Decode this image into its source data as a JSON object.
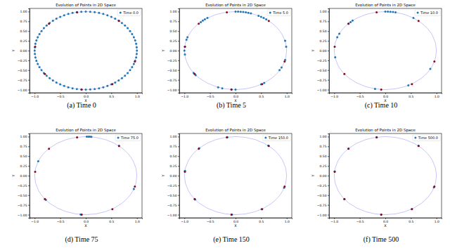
{
  "chart_data": [
    {
      "type": "scatter",
      "title": "Evolution of Points in 2D Space",
      "caption": "(a) Time 0",
      "x_label": "X",
      "y_label": "Y",
      "xlim": [
        -1.1,
        1.1
      ],
      "ylim": [
        -1.08,
        1.08
      ],
      "xticks": [
        {
          "value": -1,
          "label": "−1.0"
        },
        {
          "value": -0.5,
          "label": "−0.5"
        },
        {
          "value": 0,
          "label": "0.0"
        },
        {
          "value": 0.5,
          "label": "0.5"
        },
        {
          "value": 1,
          "label": "1.0"
        }
      ],
      "yticks": [
        {
          "value": -1,
          "label": "−1.00"
        },
        {
          "value": -0.75,
          "label": "−0.75"
        },
        {
          "value": -0.5,
          "label": "−0.50"
        },
        {
          "value": -0.25,
          "label": "−0.25"
        },
        {
          "value": 0,
          "label": "0.00"
        },
        {
          "value": 0.25,
          "label": "0.25"
        },
        {
          "value": 0.5,
          "label": "0.50"
        },
        {
          "value": 0.75,
          "label": "0.75"
        },
        {
          "value": 1,
          "label": "1.00"
        }
      ],
      "circle_radius": 1,
      "legend": "upper right",
      "series": [
        {
          "name": "Time 0.0",
          "color": "#1f77b4",
          "x": [
            1,
            0.996,
            0.985,
            0.966,
            0.94,
            0.906,
            0.866,
            0.819,
            0.766,
            0.707,
            0.643,
            0.574,
            0.5,
            0.423,
            0.342,
            0.259,
            0.174,
            0.087,
            0,
            -0.087,
            -0.174,
            -0.259,
            -0.342,
            -0.423,
            -0.5,
            -0.574,
            -0.643,
            -0.707,
            -0.766,
            -0.819,
            -0.866,
            -0.906,
            -0.94,
            -0.966,
            -0.985,
            -0.996,
            -1,
            -0.996,
            -0.985,
            -0.966,
            -0.94,
            -0.906,
            -0.866,
            -0.819,
            -0.766,
            -0.707,
            -0.643,
            -0.574,
            -0.5,
            -0.423,
            -0.342,
            -0.259,
            -0.174,
            -0.087,
            0,
            0.087,
            0.174,
            0.259,
            0.342,
            0.423,
            0.5,
            0.574,
            0.643,
            0.707,
            0.766,
            0.819,
            0.866,
            0.906,
            0.94,
            0.966,
            0.985,
            0.996
          ],
          "y": [
            0,
            0.087,
            0.174,
            0.259,
            0.342,
            0.423,
            0.5,
            0.574,
            0.643,
            0.707,
            0.766,
            0.819,
            0.866,
            0.906,
            0.94,
            0.966,
            0.985,
            0.996,
            1,
            0.996,
            0.985,
            0.966,
            0.94,
            0.906,
            0.866,
            0.819,
            0.766,
            0.707,
            0.643,
            0.574,
            0.5,
            0.423,
            0.342,
            0.259,
            0.174,
            0.087,
            0,
            -0.087,
            -0.174,
            -0.259,
            -0.342,
            -0.423,
            -0.5,
            -0.574,
            -0.643,
            -0.707,
            -0.766,
            -0.819,
            -0.866,
            -0.906,
            -0.94,
            -0.966,
            -0.985,
            -0.996,
            -1,
            -0.996,
            -0.985,
            -0.966,
            -0.94,
            -0.906,
            -0.866,
            -0.819,
            -0.766,
            -0.707,
            -0.643,
            -0.574,
            -0.5,
            -0.423,
            -0.342,
            -0.259,
            -0.174,
            -0.087
          ]
        },
        {
          "color": "#8b0a1a",
          "x": [
            -0.17,
            0.65,
            -0.72,
            -0.99,
            -0.8,
            -0.08,
            0.52,
            0.96
          ],
          "y": [
            0.98,
            0.76,
            0.69,
            0.1,
            -0.6,
            -1,
            -0.86,
            -0.28
          ]
        }
      ]
    },
    {
      "type": "scatter",
      "title": "Evolution of Points in 2D Space",
      "caption": "(b) Time 5",
      "x_label": "X",
      "y_label": "Y",
      "xlim": [
        -1.1,
        1.1
      ],
      "ylim": [
        -1.08,
        1.08
      ],
      "xticks": [
        {
          "value": -1,
          "label": "−1.0"
        },
        {
          "value": -0.5,
          "label": "−0.5"
        },
        {
          "value": 0,
          "label": "0.0"
        },
        {
          "value": 0.5,
          "label": "0.5"
        },
        {
          "value": 1,
          "label": "1.0"
        }
      ],
      "yticks": [
        {
          "value": -1,
          "label": "−1.00"
        },
        {
          "value": -0.75,
          "label": "−0.75"
        },
        {
          "value": -0.5,
          "label": "−0.50"
        },
        {
          "value": -0.25,
          "label": "−0.25"
        },
        {
          "value": 0,
          "label": "0.00"
        },
        {
          "value": 0.25,
          "label": "0.25"
        },
        {
          "value": 0.5,
          "label": "0.50"
        },
        {
          "value": 0.75,
          "label": "0.75"
        },
        {
          "value": 1,
          "label": "1.00"
        }
      ],
      "circle_radius": 1,
      "legend": "upper right",
      "series": [
        {
          "name": "Time 5.0",
          "color": "#1f77b4",
          "x": [
            0,
            0.05,
            0.1,
            0.15,
            0.2,
            0.25,
            0.3,
            0.45,
            0.5,
            0.55,
            0.6,
            -0.55,
            -0.6,
            -0.64,
            -0.68,
            -0.94,
            -0.96,
            -0.99,
            -1,
            -0.99,
            -0.82,
            -0.78,
            -0.34,
            -0.26,
            -0.08,
            0,
            0.5,
            0.56,
            0.86,
            0.9,
            0.97,
            0.99,
            0.97
          ],
          "y": [
            1,
            0.999,
            0.995,
            0.989,
            0.98,
            0.968,
            0.954,
            0.89,
            0.866,
            0.835,
            0.8,
            0.835,
            0.8,
            0.77,
            0.73,
            0.342,
            0.28,
            0.1,
            0,
            -0.1,
            -0.57,
            -0.63,
            -0.94,
            -0.966,
            -0.996,
            -1,
            -0.866,
            -0.83,
            -0.5,
            -0.43,
            -0.24,
            0.1,
            0.25
          ]
        },
        {
          "color": "#8b0a1a",
          "x": [
            -0.17,
            0.65,
            -0.72,
            -0.99,
            -0.8,
            -0.08,
            0.52,
            0.96
          ],
          "y": [
            0.98,
            0.76,
            0.69,
            0.1,
            -0.6,
            -1,
            -0.86,
            -0.28
          ]
        }
      ]
    },
    {
      "type": "scatter",
      "title": "Evolution of Points in 2D Space",
      "caption": "(c) Time 10",
      "x_label": "X",
      "y_label": "Y",
      "xlim": [
        -1.1,
        1.1
      ],
      "ylim": [
        -1.08,
        1.08
      ],
      "xticks": [
        {
          "value": -1,
          "label": "−1.0"
        },
        {
          "value": -0.5,
          "label": "−0.5"
        },
        {
          "value": 0,
          "label": "0.0"
        },
        {
          "value": 0.5,
          "label": "0.5"
        },
        {
          "value": 1,
          "label": "1.0"
        }
      ],
      "yticks": [
        {
          "value": -1,
          "label": "−1.00"
        },
        {
          "value": -0.75,
          "label": "−0.75"
        },
        {
          "value": -0.5,
          "label": "−0.50"
        },
        {
          "value": -0.25,
          "label": "−0.25"
        },
        {
          "value": 0,
          "label": "0.00"
        },
        {
          "value": 0.25,
          "label": "0.25"
        },
        {
          "value": 0.5,
          "label": "0.50"
        },
        {
          "value": 0.75,
          "label": "0.75"
        },
        {
          "value": 1,
          "label": "1.00"
        }
      ],
      "circle_radius": 1,
      "legend": "upper right",
      "series": [
        {
          "name": "Time 10.0",
          "color": "#1f77b4",
          "x": [
            0,
            0.05,
            0.1,
            0.15,
            0.2,
            -0.64,
            -0.68,
            -0.72,
            -0.9,
            -0.94,
            0.55,
            0.88,
            -0.98,
            -0.2,
            0.45
          ],
          "y": [
            1,
            0.999,
            0.995,
            0.989,
            0.98,
            0.77,
            0.73,
            0.69,
            0.43,
            0.34,
            0.835,
            -0.47,
            -0.17,
            -0.98,
            -0.89
          ]
        },
        {
          "color": "#8b0a1a",
          "x": [
            -0.17,
            0.65,
            -0.72,
            -0.99,
            -0.8,
            -0.08,
            0.52,
            0.96
          ],
          "y": [
            0.98,
            0.76,
            0.69,
            0.1,
            -0.6,
            -1,
            -0.86,
            -0.28
          ]
        }
      ]
    },
    {
      "type": "scatter",
      "title": "Evolution of Points in 2D Space",
      "caption": "(d) Time 75",
      "x_label": "X",
      "y_label": "Y",
      "xlim": [
        -1.1,
        1.1
      ],
      "ylim": [
        -1.08,
        1.08
      ],
      "xticks": [
        {
          "value": -1,
          "label": "−1.0"
        },
        {
          "value": -0.5,
          "label": "−0.5"
        },
        {
          "value": 0,
          "label": "0.0"
        },
        {
          "value": 0.5,
          "label": "0.5"
        },
        {
          "value": 1,
          "label": "1.0"
        }
      ],
      "yticks": [
        {
          "value": -1,
          "label": "−1.00"
        },
        {
          "value": -0.75,
          "label": "−0.75"
        },
        {
          "value": -0.5,
          "label": "−0.50"
        },
        {
          "value": -0.25,
          "label": "−0.25"
        },
        {
          "value": 0,
          "label": "0.00"
        },
        {
          "value": 0.25,
          "label": "0.25"
        },
        {
          "value": 0.5,
          "label": "0.50"
        },
        {
          "value": 0.75,
          "label": "0.75"
        },
        {
          "value": 1,
          "label": "1.00"
        }
      ],
      "circle_radius": 1,
      "legend": "upper right",
      "series": [
        {
          "name": "Time 75.0",
          "color": "#1f77b4",
          "x": [
            0.02,
            0.05,
            0.08,
            0.11,
            0.65,
            -0.93,
            0.94,
            -0.78,
            -0.1
          ],
          "y": [
            1,
            0.999,
            0.997,
            0.994,
            0.76,
            0.37,
            -0.34,
            -0.62,
            -0.995
          ]
        },
        {
          "color": "#8b0a1a",
          "x": [
            -0.17,
            0.65,
            -0.72,
            -0.99,
            -0.8,
            -0.08,
            0.52,
            0.96
          ],
          "y": [
            0.98,
            0.76,
            0.69,
            0.1,
            -0.6,
            -1,
            -0.86,
            -0.28
          ]
        }
      ]
    },
    {
      "type": "scatter",
      "title": "Evolution of Points in 2D Space",
      "caption": "(e) Time 150",
      "x_label": "X",
      "y_label": "Y",
      "xlim": [
        -1.1,
        1.1
      ],
      "ylim": [
        -1.08,
        1.08
      ],
      "xticks": [
        {
          "value": -1,
          "label": "−1.0"
        },
        {
          "value": -0.5,
          "label": "−0.5"
        },
        {
          "value": 0,
          "label": "0.0"
        },
        {
          "value": 0.5,
          "label": "0.5"
        },
        {
          "value": 1,
          "label": "1.0"
        }
      ],
      "yticks": [
        {
          "value": -1,
          "label": "−1.00"
        },
        {
          "value": -0.75,
          "label": "−0.75"
        },
        {
          "value": -0.5,
          "label": "−0.50"
        },
        {
          "value": -0.25,
          "label": "−0.25"
        },
        {
          "value": 0,
          "label": "0.00"
        },
        {
          "value": 0.25,
          "label": "0.25"
        },
        {
          "value": 0.5,
          "label": "0.50"
        },
        {
          "value": 0.75,
          "label": "0.75"
        },
        {
          "value": 1,
          "label": "1.00"
        }
      ],
      "circle_radius": 1,
      "legend": "upper right",
      "series": [
        {
          "name": "Time 150.0",
          "color": "#1f77b4",
          "x": [
            -0.16,
            0.64,
            -0.71,
            -0.99,
            -0.79,
            -0.07,
            0.51,
            0.95
          ],
          "y": [
            0.985,
            0.77,
            0.7,
            0.12,
            -0.61,
            -0.998,
            -0.86,
            -0.31
          ]
        },
        {
          "color": "#8b0a1a",
          "x": [
            -0.17,
            0.65,
            -0.72,
            -0.99,
            -0.8,
            -0.08,
            0.52,
            0.96
          ],
          "y": [
            0.98,
            0.76,
            0.69,
            0.1,
            -0.6,
            -1,
            -0.86,
            -0.28
          ]
        }
      ]
    },
    {
      "type": "scatter",
      "title": "Evolution of Points in 2D Space",
      "caption": "(f) Time 500",
      "x_label": "X",
      "y_label": "Y",
      "xlim": [
        -1.1,
        1.1
      ],
      "ylim": [
        -1.08,
        1.08
      ],
      "xticks": [
        {
          "value": -1,
          "label": "−1.0"
        },
        {
          "value": -0.5,
          "label": "−0.5"
        },
        {
          "value": 0,
          "label": "0.0"
        },
        {
          "value": 0.5,
          "label": "0.5"
        },
        {
          "value": 1,
          "label": "1.0"
        }
      ],
      "yticks": [
        {
          "value": -1,
          "label": "−1.00"
        },
        {
          "value": -0.75,
          "label": "−0.75"
        },
        {
          "value": -0.5,
          "label": "−0.50"
        },
        {
          "value": -0.25,
          "label": "−0.25"
        },
        {
          "value": 0,
          "label": "0.00"
        },
        {
          "value": 0.25,
          "label": "0.25"
        },
        {
          "value": 0.5,
          "label": "0.50"
        },
        {
          "value": 0.75,
          "label": "0.75"
        },
        {
          "value": 1,
          "label": "1.00"
        }
      ],
      "circle_radius": 1,
      "legend": "upper right",
      "series": [
        {
          "name": "Time 500.0",
          "color": "#1f77b4",
          "x": [
            -0.17,
            0.65,
            -0.72,
            -0.99,
            -0.8,
            -0.08,
            0.52,
            0.95
          ],
          "y": [
            0.985,
            0.765,
            0.695,
            0.11,
            -0.605,
            -0.998,
            -0.855,
            -0.3
          ]
        },
        {
          "color": "#8b0a1a",
          "x": [
            -0.17,
            0.65,
            -0.72,
            -0.99,
            -0.8,
            -0.08,
            0.52,
            0.96
          ],
          "y": [
            0.98,
            0.76,
            0.69,
            0.1,
            -0.6,
            -1,
            -0.86,
            -0.28
          ]
        }
      ]
    }
  ]
}
